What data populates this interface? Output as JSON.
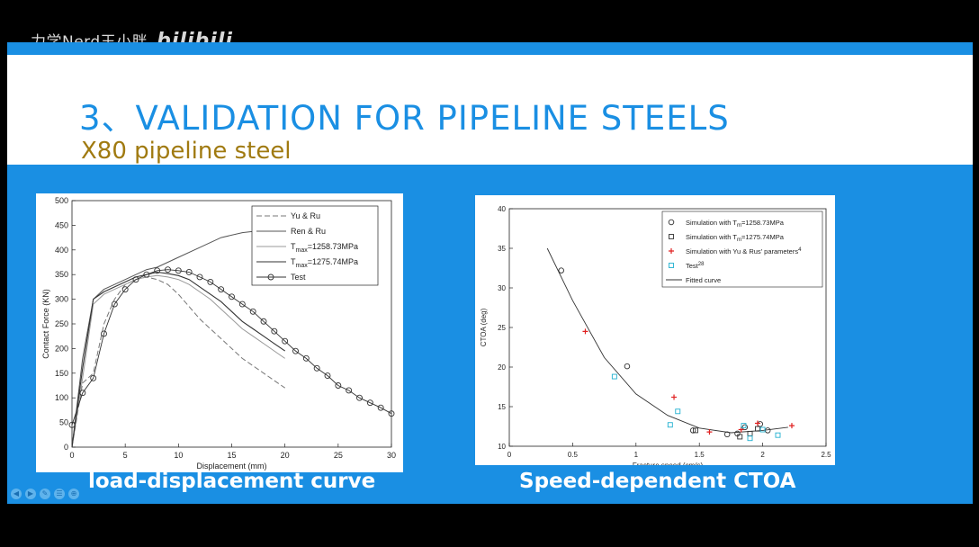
{
  "watermark": {
    "author": "力学Nerd王小胖",
    "logo": "bilibili"
  },
  "slide": {
    "title": "3、VALIDATION FOR PIPELINE STEELS",
    "subtitle": "X80 pipeline steel",
    "caption_left": "load-displacement curve",
    "caption_right": "Speed-dependent CTOA"
  },
  "colors": {
    "accent": "#1a8fe3",
    "subtitle": "#a07a10"
  },
  "nav_icons": [
    "prev-icon",
    "next-icon",
    "pen-icon",
    "menu-icon",
    "zoom-icon"
  ],
  "chart_data": [
    {
      "type": "line",
      "xlabel": "Displacement (mm)",
      "ylabel": "Contact Force (KN)",
      "xlim": [
        0,
        30
      ],
      "ylim": [
        0,
        500
      ],
      "xticks": [
        "0",
        "5",
        "10",
        "15",
        "20",
        "25",
        "30"
      ],
      "yticks": [
        "0",
        "50",
        "100",
        "150",
        "200",
        "250",
        "300",
        "350",
        "400",
        "450",
        "500"
      ],
      "legend_position": "top-right",
      "series": [
        {
          "name": "Yu & Ru",
          "style": "dash",
          "x": [
            0,
            1,
            2,
            3,
            4,
            5,
            6,
            7,
            8,
            9,
            10,
            11,
            12,
            13,
            14,
            15,
            16,
            17,
            18,
            19,
            20
          ],
          "values": [
            0,
            130,
            150,
            250,
            300,
            330,
            340,
            345,
            340,
            330,
            310,
            285,
            260,
            240,
            220,
            200,
            180,
            165,
            150,
            135,
            120
          ]
        },
        {
          "name": "Ren & Ru",
          "style": "solid-gray",
          "x": [
            0,
            1,
            2,
            3,
            4,
            5,
            6,
            7,
            8,
            9,
            10,
            12,
            14,
            16,
            18,
            20
          ],
          "values": [
            0,
            180,
            300,
            320,
            330,
            340,
            350,
            360,
            365,
            375,
            385,
            405,
            425,
            435,
            440,
            445
          ]
        },
        {
          "name": "T_max=1258.73MPa",
          "style": "solid-light",
          "x": [
            0,
            1,
            2,
            3,
            4,
            5,
            6,
            7,
            8,
            9,
            10,
            11,
            12,
            13,
            14,
            15,
            16,
            17,
            18,
            19,
            20
          ],
          "values": [
            0,
            140,
            290,
            310,
            320,
            330,
            340,
            345,
            348,
            345,
            340,
            330,
            315,
            300,
            280,
            260,
            240,
            225,
            210,
            195,
            180
          ]
        },
        {
          "name": "T_max=1275.74MPa",
          "style": "solid-dark",
          "x": [
            0,
            1,
            2,
            3,
            4,
            5,
            6,
            7,
            8,
            9,
            10,
            11,
            12,
            13,
            14,
            15,
            16,
            17,
            18,
            19,
            20
          ],
          "values": [
            0,
            160,
            300,
            315,
            325,
            335,
            345,
            350,
            355,
            352,
            348,
            340,
            325,
            310,
            295,
            275,
            255,
            240,
            225,
            210,
            195
          ]
        },
        {
          "name": "Test",
          "style": "circle",
          "x": [
            0,
            1,
            2,
            3,
            4,
            5,
            6,
            7,
            8,
            9,
            10,
            11,
            12,
            13,
            14,
            15,
            16,
            17,
            18,
            19,
            20,
            21,
            22,
            23,
            24,
            25,
            26,
            27,
            28,
            29,
            30
          ],
          "values": [
            45,
            110,
            140,
            230,
            290,
            320,
            340,
            350,
            358,
            360,
            358,
            355,
            345,
            335,
            320,
            305,
            290,
            275,
            255,
            235,
            215,
            195,
            180,
            160,
            145,
            125,
            115,
            100,
            90,
            80,
            68
          ]
        }
      ]
    },
    {
      "type": "scatter",
      "xlabel": "Fracture speed (cm/s)",
      "ylabel": "CTOA (deg)",
      "xlim": [
        0,
        2.5
      ],
      "ylim": [
        10,
        40
      ],
      "xticks": [
        "0",
        "0.5",
        "1",
        "1.5",
        "2",
        "2.5"
      ],
      "yticks": [
        "10",
        "15",
        "20",
        "25",
        "30",
        "35",
        "40"
      ],
      "legend_position": "top-right",
      "series": [
        {
          "name": "Simulation with T",
          "sub": "m",
          "suffix": "=1258.73MPa",
          "marker": "circle",
          "color": "#333333",
          "x": [
            0.41,
            0.93,
            1.45,
            1.72,
            1.8,
            1.86,
            1.98,
            2.04
          ],
          "values": [
            32.2,
            20.1,
            12.0,
            11.5,
            11.6,
            12.4,
            12.8,
            12.0
          ]
        },
        {
          "name": "Simulation with T",
          "sub": "m",
          "suffix": "=1275.74MPa",
          "marker": "square",
          "color": "#333333",
          "x": [
            1.47,
            1.82,
            1.9,
            1.96
          ],
          "values": [
            12.0,
            11.2,
            11.6,
            12.2
          ]
        },
        {
          "name": "Simulation with Yu & Rus' parameters",
          "sup": "4",
          "marker": "plus",
          "color": "#e02020",
          "x": [
            0.6,
            1.3,
            1.58,
            1.83,
            1.96,
            2.23
          ],
          "values": [
            24.5,
            16.2,
            11.8,
            12.1,
            12.9,
            12.6
          ]
        },
        {
          "name": "Test",
          "sup": "28",
          "marker": "square",
          "color": "#20b0d0",
          "x": [
            0.83,
            1.27,
            1.33,
            1.85,
            1.9,
            2.0,
            2.12
          ],
          "values": [
            18.8,
            12.7,
            14.4,
            12.6,
            11.0,
            12.1,
            11.4
          ]
        },
        {
          "name": "Fitted curve",
          "marker": "line",
          "color": "#333333",
          "x": [
            0.3,
            0.5,
            0.75,
            1.0,
            1.25,
            1.5,
            1.75,
            2.0,
            2.2
          ],
          "values": [
            35,
            28.4,
            21.2,
            16.6,
            13.9,
            12.3,
            11.7,
            12.0,
            12.4
          ]
        }
      ]
    }
  ]
}
